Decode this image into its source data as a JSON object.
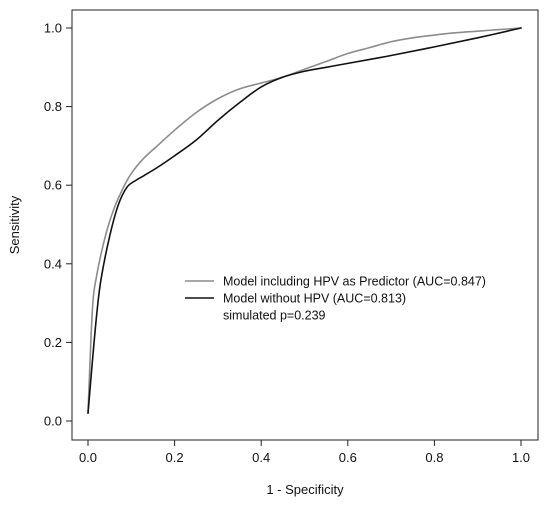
{
  "chart_data": {
    "type": "line",
    "title": "",
    "xlabel": "1 - Specificity",
    "ylabel": "Sensitivity",
    "xlim": [
      0,
      1
    ],
    "ylim": [
      0,
      1
    ],
    "xticks": [
      0.0,
      0.2,
      0.4,
      0.6,
      0.8,
      1.0
    ],
    "yticks": [
      0.0,
      0.2,
      0.4,
      0.6,
      0.8,
      1.0
    ],
    "xtick_labels": [
      "0.0",
      "0.2",
      "0.4",
      "0.6",
      "0.8",
      "1.0"
    ],
    "ytick_labels": [
      "0.0",
      "0.2",
      "0.4",
      "0.6",
      "0.8",
      "1.0"
    ],
    "grid": false,
    "legend_position": "center-right",
    "series": [
      {
        "name": "Model including HPV as Predictor (AUC=0.847)",
        "color": "#8c8c8c",
        "x": [
          0.0,
          0.01,
          0.02,
          0.04,
          0.06,
          0.08,
          0.1,
          0.13,
          0.16,
          0.2,
          0.25,
          0.3,
          0.35,
          0.4,
          0.45,
          0.5,
          0.55,
          0.6,
          0.65,
          0.7,
          0.75,
          0.8,
          0.85,
          0.9,
          0.95,
          1.0
        ],
        "y": [
          0.02,
          0.28,
          0.37,
          0.47,
          0.54,
          0.59,
          0.63,
          0.67,
          0.7,
          0.74,
          0.785,
          0.82,
          0.845,
          0.86,
          0.875,
          0.895,
          0.915,
          0.935,
          0.95,
          0.965,
          0.975,
          0.982,
          0.988,
          0.992,
          0.996,
          1.0
        ]
      },
      {
        "name": "Model without HPV (AUC=0.813)",
        "color": "#111111",
        "x": [
          0.0,
          0.01,
          0.02,
          0.03,
          0.05,
          0.07,
          0.09,
          0.11,
          0.13,
          0.16,
          0.2,
          0.25,
          0.3,
          0.35,
          0.4,
          0.45,
          0.5,
          0.55,
          0.6,
          0.7,
          0.8,
          0.9,
          1.0
        ],
        "y": [
          0.02,
          0.15,
          0.27,
          0.36,
          0.47,
          0.55,
          0.595,
          0.612,
          0.625,
          0.645,
          0.675,
          0.715,
          0.765,
          0.81,
          0.85,
          0.875,
          0.89,
          0.9,
          0.91,
          0.93,
          0.952,
          0.975,
          1.0
        ]
      }
    ],
    "annotation": "simulated p=0.239"
  }
}
